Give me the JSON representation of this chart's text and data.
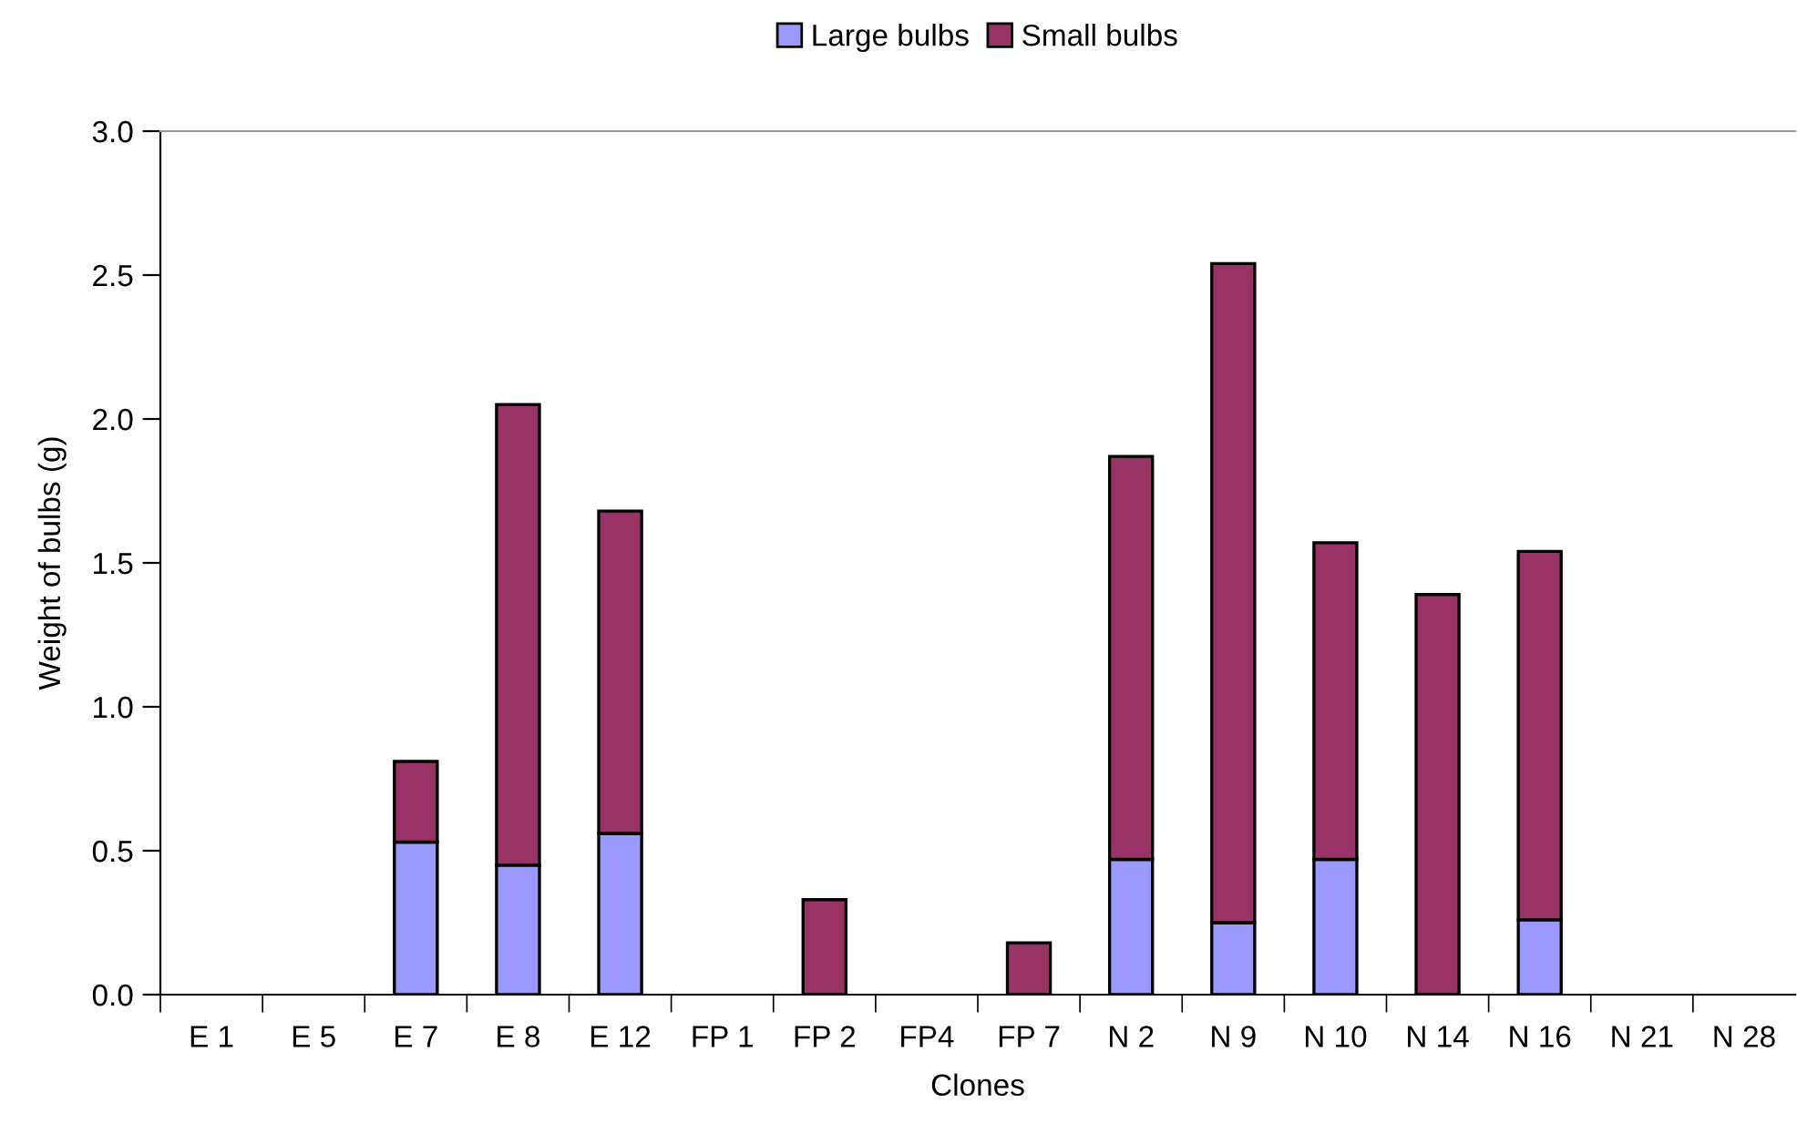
{
  "chart_data": {
    "type": "bar",
    "stacked": true,
    "xlabel": "Clones",
    "ylabel": "Weight of bulbs (g)",
    "categories": [
      "E 1",
      "E 5",
      "E 7",
      "E 8",
      "E 12",
      "FP 1",
      "FP 2",
      "FP4",
      "FP 7",
      "N 2",
      "N 9",
      "N 10",
      "N 14",
      "N 16",
      "N 21",
      "N 28"
    ],
    "series": [
      {
        "name": "Large bulbs",
        "color": "#9999ff",
        "values": [
          0,
          0,
          0.53,
          0.45,
          0.56,
          0,
          0,
          0,
          0,
          0.47,
          0.25,
          0.47,
          0,
          0.26,
          0,
          0
        ]
      },
      {
        "name": "Small bulbs",
        "color": "#993366",
        "values": [
          0,
          0,
          0.28,
          1.6,
          1.12,
          0,
          0.33,
          0,
          0.18,
          1.4,
          2.29,
          1.1,
          1.39,
          1.28,
          0,
          0
        ]
      }
    ],
    "ylim": [
      0,
      3.0
    ],
    "yticks": [
      {
        "value": 0,
        "label": "0.0"
      },
      {
        "value": 0.5,
        "label": "0.5"
      },
      {
        "value": 1.0,
        "label": "1.0"
      },
      {
        "value": 1.5,
        "label": "1.5"
      },
      {
        "value": 2.0,
        "label": "2.0"
      },
      {
        "value": 2.5,
        "label": "2.5"
      },
      {
        "value": 3.0,
        "label": "3.0"
      }
    ],
    "grid": false,
    "legend": "top"
  }
}
